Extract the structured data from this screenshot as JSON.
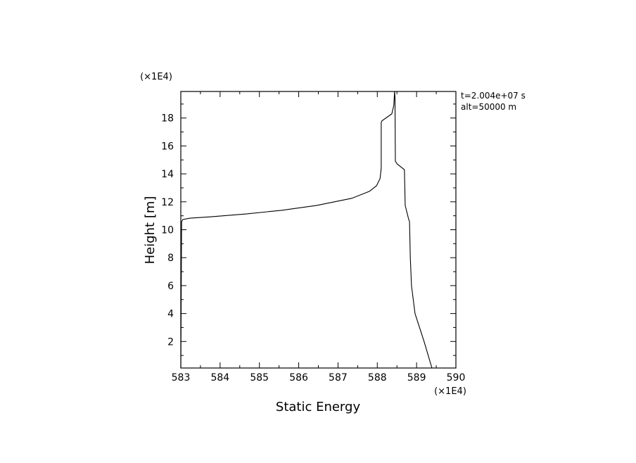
{
  "chart_data": {
    "type": "line",
    "x_multiplier": "(×1E4)",
    "y_multiplier": "(×1E4)",
    "xlabel": "Static Energy",
    "ylabel": "Height [m]",
    "annotations": [
      "t=2.004e+07 s",
      "alt=50000 m"
    ],
    "xlim": [
      583,
      590
    ],
    "ylim": [
      0.1,
      19.9
    ],
    "xticks": [
      583,
      584,
      585,
      586,
      587,
      588,
      589,
      590
    ],
    "yticks": [
      2,
      4,
      6,
      8,
      10,
      12,
      14,
      16,
      18
    ],
    "series": [
      {
        "color": "#000000",
        "x": [
          589.39,
          589.19,
          588.96,
          588.87,
          588.84,
          588.82,
          588.8,
          588.71,
          588.69,
          588.51,
          588.46,
          588.45,
          588.44,
          588.42,
          588.37,
          588.12,
          588.1,
          588.1,
          588.07,
          587.98,
          587.8,
          587.35,
          586.46,
          585.56,
          584.66,
          583.77,
          583.23,
          583.05,
          583.02,
          583.0
        ],
        "values": [
          0.1,
          2,
          4,
          6,
          8,
          10.6,
          10.73,
          11.74,
          14.3,
          14.7,
          14.9,
          19.5,
          19.9,
          18.91,
          18.3,
          17.8,
          17.69,
          14.41,
          13.66,
          13.15,
          12.75,
          12.25,
          11.74,
          11.39,
          11.13,
          10.93,
          10.83,
          10.73,
          10.58,
          0.1
        ]
      }
    ]
  }
}
